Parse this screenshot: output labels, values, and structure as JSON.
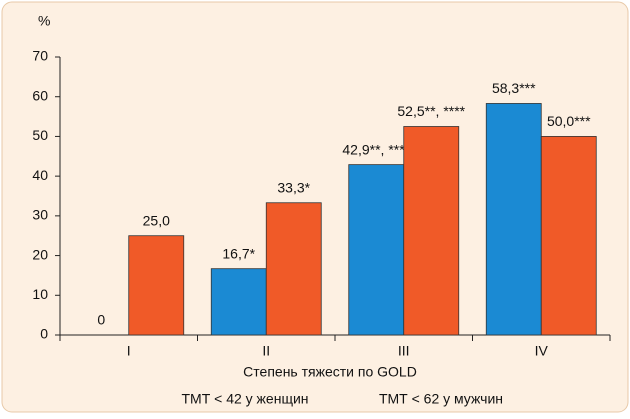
{
  "chart_data": {
    "type": "bar",
    "y_label": "%",
    "x_label": "Степень тяжести по GOLD",
    "categories": [
      "I",
      "II",
      "III",
      "IV"
    ],
    "series": [
      {
        "name": "ТМТ < 42 у женщин",
        "color": "#1b8ad3",
        "values": [
          0,
          16.7,
          42.9,
          58.3
        ],
        "value_labels": [
          "0",
          "16,7*",
          "42,9**, ****",
          "58,3***"
        ]
      },
      {
        "name": "ТМТ < 62 у мужчин",
        "color": "#f05a28",
        "values": [
          25,
          33.3,
          52.5,
          50
        ],
        "value_labels": [
          "25,0",
          "33,3*",
          "52,5**, ****",
          "50,0***"
        ]
      }
    ],
    "ylim": [
      0,
      70
    ],
    "yticks": [
      0,
      10,
      20,
      30,
      40,
      50,
      60,
      70
    ],
    "grid": false
  }
}
